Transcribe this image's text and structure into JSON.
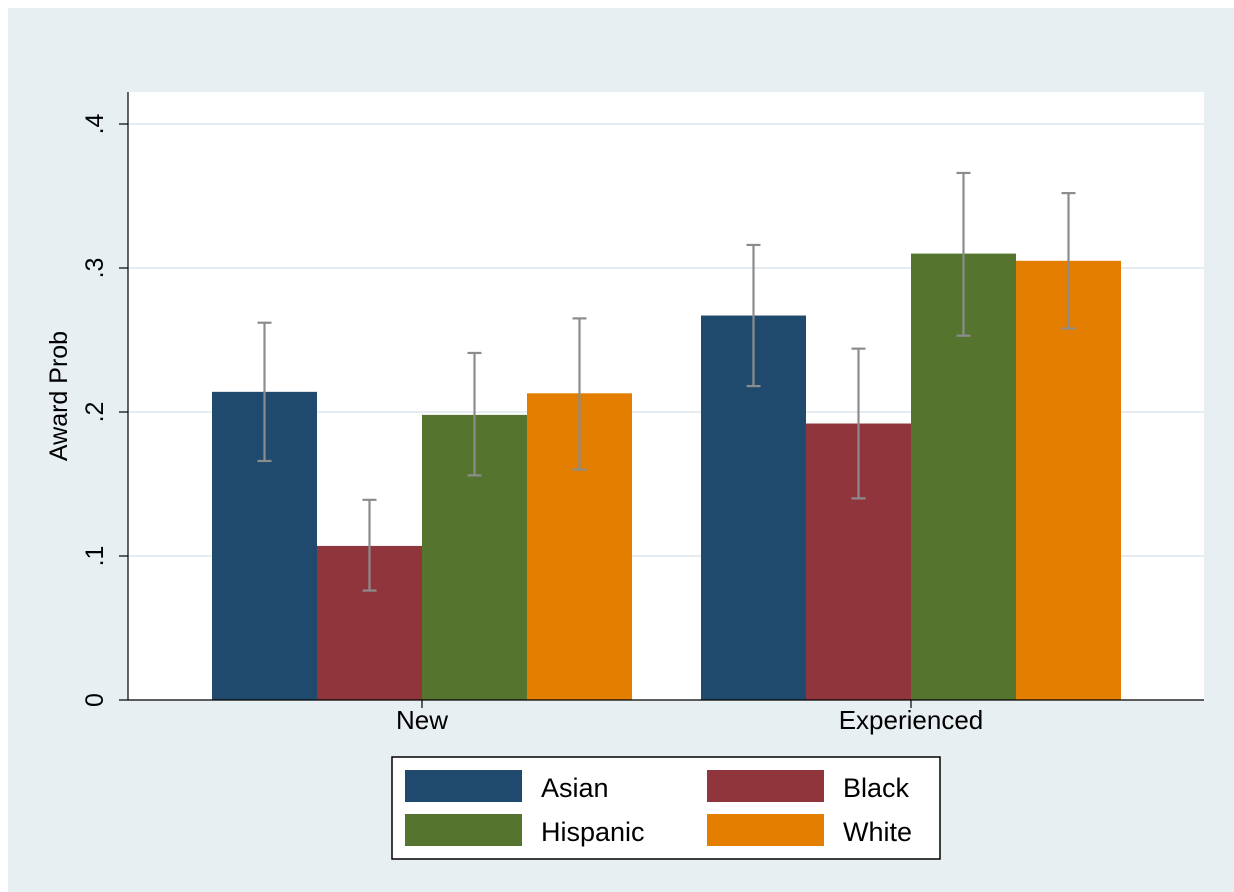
{
  "chart_data": {
    "type": "bar",
    "title": "",
    "xlabel": "",
    "ylabel": "Award Prob",
    "categories": [
      "New",
      "Experienced"
    ],
    "series": [
      {
        "name": "Asian",
        "color": "#1f4a6e",
        "values": [
          0.214,
          0.267
        ],
        "ci_low": [
          0.166,
          0.218
        ],
        "ci_high": [
          0.262,
          0.316
        ]
      },
      {
        "name": "Black",
        "color": "#90353b",
        "values": [
          0.107,
          0.192
        ],
        "ci_low": [
          0.076,
          0.14
        ],
        "ci_high": [
          0.139,
          0.244
        ]
      },
      {
        "name": "Hispanic",
        "color": "#55752f",
        "values": [
          0.198,
          0.31
        ],
        "ci_low": [
          0.156,
          0.253
        ],
        "ci_high": [
          0.241,
          0.366
        ]
      },
      {
        "name": "White",
        "color": "#e37e00",
        "values": [
          0.213,
          0.305
        ],
        "ci_low": [
          0.16,
          0.258
        ],
        "ci_high": [
          0.265,
          0.352
        ]
      }
    ],
    "ylim": [
      0,
      0.42
    ],
    "yticks": [
      0,
      0.1,
      0.2,
      0.3,
      0.4
    ],
    "ytick_labels": [
      "0",
      ".1",
      ".2",
      ".3",
      ".4"
    ],
    "grid": true,
    "error_bars": true,
    "legend": {
      "position": "bottom-center",
      "columns": 2
    },
    "colors": {
      "outer_background": "#e8eff2",
      "plot_background": "#ffffff",
      "grid": "#e6ecef",
      "error_bar": "#8c8c8c",
      "axis": "#000000"
    }
  }
}
